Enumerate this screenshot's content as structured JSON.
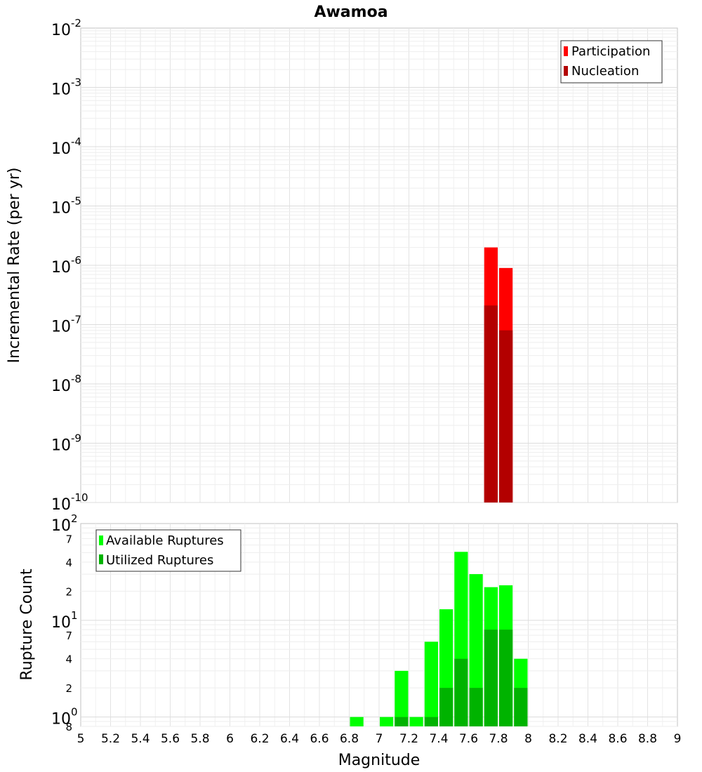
{
  "chart_data": [
    {
      "type": "bar",
      "title": "Awamoa",
      "ylabel": "Incremental Rate (per yr)",
      "xlim": [
        5,
        9
      ],
      "ylim": [
        1e-10,
        0.01
      ],
      "yscale": "log",
      "grid": true,
      "legend_position": "top-right",
      "y_ticks": [
        {
          "base": "10",
          "exp": "-2"
        },
        {
          "base": "10",
          "exp": "-3"
        },
        {
          "base": "10",
          "exp": "-4"
        },
        {
          "base": "10",
          "exp": "-5"
        },
        {
          "base": "10",
          "exp": "-6"
        },
        {
          "base": "10",
          "exp": "-7"
        },
        {
          "base": "10",
          "exp": "-8"
        },
        {
          "base": "10",
          "exp": "-9"
        },
        {
          "base": "10",
          "exp": "-10"
        }
      ],
      "series": [
        {
          "name": "Participation",
          "color": "#ff0000",
          "x": [
            7.75,
            7.85
          ],
          "values": [
            2e-06,
            9e-07
          ]
        },
        {
          "name": "Nucleation",
          "color": "#b30000",
          "x": [
            7.75,
            7.85
          ],
          "values": [
            2.1e-07,
            8e-08
          ]
        }
      ]
    },
    {
      "type": "bar",
      "xlabel": "Magnitude",
      "ylabel": "Rupture Count",
      "xlim": [
        5,
        9
      ],
      "ylim": [
        0.8,
        100
      ],
      "yscale": "log",
      "grid": true,
      "legend_position": "top-left",
      "x_ticks": [
        "5",
        "5.2",
        "5.4",
        "5.6",
        "5.8",
        "6",
        "6.2",
        "6.4",
        "6.6",
        "6.8",
        "7",
        "7.2",
        "7.4",
        "7.6",
        "7.8",
        "8",
        "8.2",
        "8.4",
        "8.6",
        "8.8",
        "9"
      ],
      "y_major_ticks": [
        {
          "base": "10",
          "exp": "2"
        },
        {
          "base": "10",
          "exp": "1"
        },
        {
          "base": "10",
          "exp": "0"
        }
      ],
      "y_minor_ticks": [
        "7",
        "4",
        "2",
        "7",
        "4",
        "2",
        "8"
      ],
      "series": [
        {
          "name": "Available Ruptures",
          "color": "#00ff00",
          "x": [
            6.85,
            7.05,
            7.15,
            7.25,
            7.35,
            7.45,
            7.55,
            7.65,
            7.75,
            7.85,
            7.95
          ],
          "values": [
            1,
            1,
            3,
            1,
            6,
            13,
            51,
            30,
            22,
            23,
            4
          ]
        },
        {
          "name": "Utilized Ruptures",
          "color": "#00b300",
          "x": [
            7.15,
            7.35,
            7.45,
            7.55,
            7.65,
            7.75,
            7.85,
            7.95
          ],
          "values": [
            1,
            1,
            2,
            4,
            2,
            8,
            8,
            2
          ]
        }
      ]
    }
  ]
}
